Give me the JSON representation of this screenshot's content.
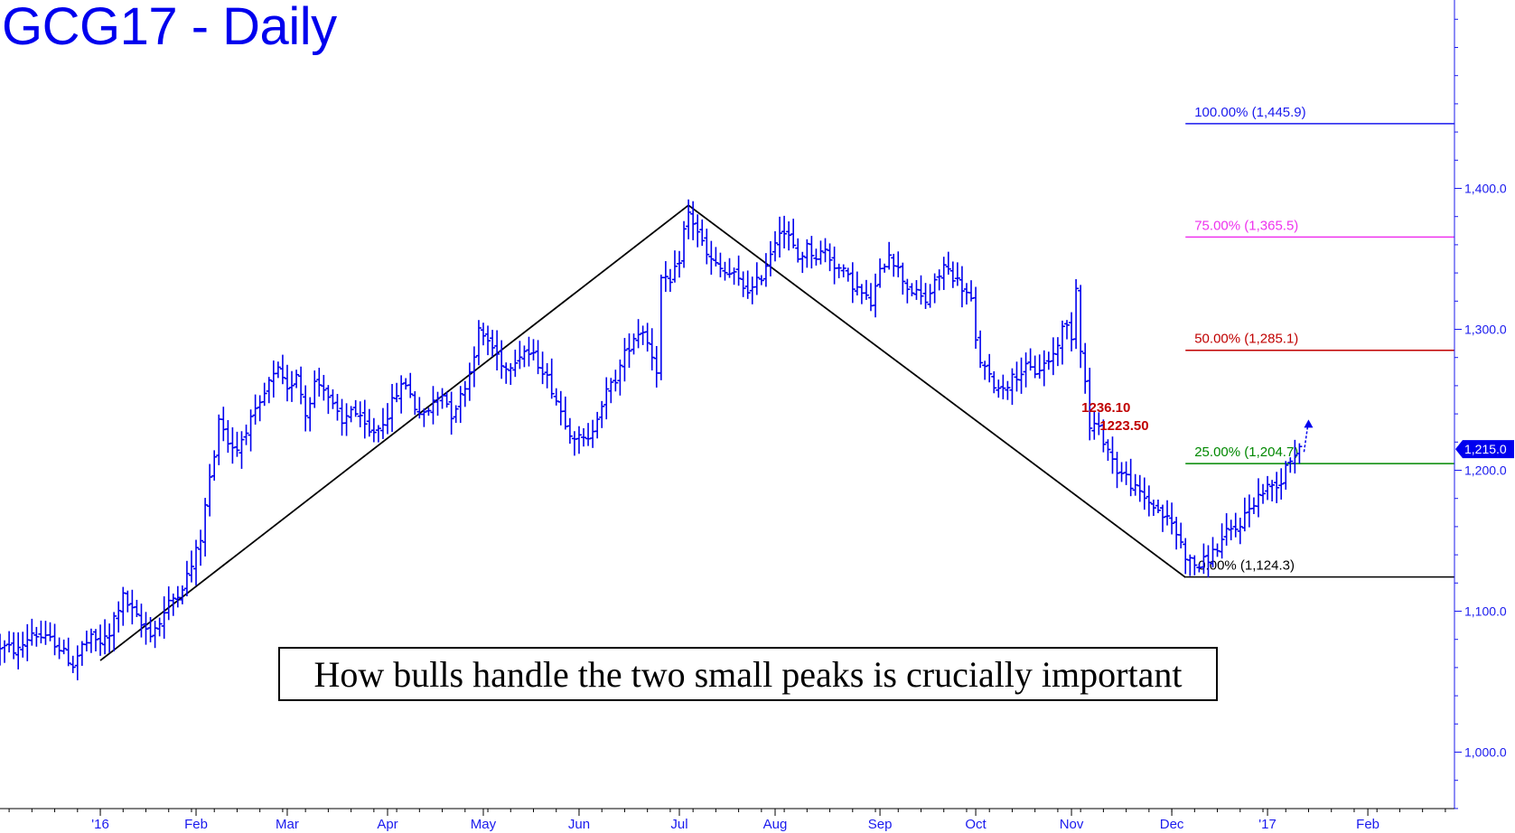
{
  "chart_data": {
    "type": "ohlc",
    "title": "GCG17 - Daily",
    "annotation": "How bulls handle the two small peaks is crucially important",
    "ylim": [
      940,
      1530
    ],
    "y_ticks": [
      {
        "value": 1000,
        "label": "1,000.0"
      },
      {
        "value": 1100,
        "label": "1,100.0"
      },
      {
        "value": 1200,
        "label": "1,200.0"
      },
      {
        "value": 1300,
        "label": "1,300.0"
      },
      {
        "value": 1400,
        "label": "1,400.0"
      }
    ],
    "x_months": [
      {
        "label": "'16",
        "day": 0
      },
      {
        "label": "Feb",
        "day": 21
      },
      {
        "label": "Mar",
        "day": 41
      },
      {
        "label": "Apr",
        "day": 63
      },
      {
        "label": "May",
        "day": 84
      },
      {
        "label": "Jun",
        "day": 105
      },
      {
        "label": "Jul",
        "day": 127
      },
      {
        "label": "Aug",
        "day": 148
      },
      {
        "label": "Sep",
        "day": 171
      },
      {
        "label": "Oct",
        "day": 192
      },
      {
        "label": "Nov",
        "day": 213
      },
      {
        "label": "Dec",
        "day": 235
      },
      {
        "label": "'17",
        "day": 256
      },
      {
        "label": "Feb",
        "day": 278
      }
    ],
    "xlim": [
      -22,
      297
    ],
    "last_price": {
      "value": 1215.0,
      "label": "1,215.0",
      "color": "#0000ee"
    },
    "fib_levels": [
      {
        "value": 1445.9,
        "label": "100.00% (1,445.9)",
        "color": "#1a1aee"
      },
      {
        "value": 1365.5,
        "label": "75.00% (1,365.5)",
        "color": "#ee33ee"
      },
      {
        "value": 1285.1,
        "label": "50.00% (1,285.1)",
        "color": "#c00000"
      },
      {
        "value": 1204.7,
        "label": "25.00% (1,204.7)",
        "color": "#008800"
      },
      {
        "value": 1124.3,
        "label": "0.00% (1,124.3)",
        "color": "#000000"
      }
    ],
    "fib_start_day": 238,
    "peak_labels": [
      {
        "text": "1236.10",
        "day": 215,
        "value": 1236.1
      },
      {
        "text": "1223.50",
        "day": 219,
        "value": 1223.5
      }
    ],
    "trend_lines": [
      [
        {
          "day": 0,
          "value": 1065
        },
        {
          "day": 129,
          "value": 1388
        }
      ],
      [
        {
          "day": 129,
          "value": 1388
        },
        {
          "day": 238,
          "value": 1124
        }
      ]
    ],
    "target_arrow": {
      "day": 264,
      "from": 1213,
      "to": 1236
    },
    "waypoints": [
      [
        -22,
        1075
      ],
      [
        -18,
        1072
      ],
      [
        -15,
        1085
      ],
      [
        -12,
        1080
      ],
      [
        -10,
        1078
      ],
      [
        -8,
        1070
      ],
      [
        -6,
        1062
      ],
      [
        -4,
        1075
      ],
      [
        -2,
        1080
      ],
      [
        0,
        1078
      ],
      [
        2,
        1082
      ],
      [
        3,
        1095
      ],
      [
        5,
        1110
      ],
      [
        7,
        1100
      ],
      [
        9,
        1090
      ],
      [
        11,
        1085
      ],
      [
        13,
        1092
      ],
      [
        15,
        1105
      ],
      [
        18,
        1118
      ],
      [
        20,
        1132
      ],
      [
        22,
        1152
      ],
      [
        24,
        1195
      ],
      [
        25,
        1208
      ],
      [
        26,
        1240
      ],
      [
        28,
        1220
      ],
      [
        30,
        1215
      ],
      [
        32,
        1230
      ],
      [
        35,
        1245
      ],
      [
        37,
        1262
      ],
      [
        39,
        1270
      ],
      [
        41,
        1255
      ],
      [
        43,
        1270
      ],
      [
        45,
        1240
      ],
      [
        47,
        1262
      ],
      [
        49,
        1260
      ],
      [
        51,
        1245
      ],
      [
        53,
        1232
      ],
      [
        55,
        1245
      ],
      [
        57,
        1235
      ],
      [
        59,
        1226
      ],
      [
        61,
        1230
      ],
      [
        63,
        1240
      ],
      [
        65,
        1255
      ],
      [
        67,
        1262
      ],
      [
        69,
        1245
      ],
      [
        71,
        1238
      ],
      [
        73,
        1248
      ],
      [
        75,
        1255
      ],
      [
        77,
        1240
      ],
      [
        79,
        1252
      ],
      [
        81,
        1270
      ],
      [
        83,
        1298
      ],
      [
        85,
        1292
      ],
      [
        87,
        1282
      ],
      [
        89,
        1272
      ],
      [
        91,
        1280
      ],
      [
        93,
        1285
      ],
      [
        95,
        1280
      ],
      [
        97,
        1272
      ],
      [
        99,
        1258
      ],
      [
        101,
        1242
      ],
      [
        103,
        1228
      ],
      [
        105,
        1222
      ],
      [
        107,
        1220
      ],
      [
        109,
        1240
      ],
      [
        111,
        1255
      ],
      [
        113,
        1265
      ],
      [
        115,
        1282
      ],
      [
        117,
        1295
      ],
      [
        119,
        1300
      ],
      [
        121,
        1282
      ],
      [
        122,
        1272
      ],
      [
        123,
        1335
      ],
      [
        125,
        1332
      ],
      [
        127,
        1350
      ],
      [
        128,
        1370
      ],
      [
        129,
        1382
      ],
      [
        131,
        1370
      ],
      [
        133,
        1352
      ],
      [
        135,
        1345
      ],
      [
        137,
        1340
      ],
      [
        139,
        1338
      ],
      [
        141,
        1330
      ],
      [
        143,
        1328
      ],
      [
        145,
        1338
      ],
      [
        147,
        1355
      ],
      [
        149,
        1372
      ],
      [
        151,
        1365
      ],
      [
        153,
        1350
      ],
      [
        155,
        1358
      ],
      [
        157,
        1352
      ],
      [
        159,
        1356
      ],
      [
        161,
        1346
      ],
      [
        163,
        1340
      ],
      [
        165,
        1332
      ],
      [
        167,
        1325
      ],
      [
        169,
        1318
      ],
      [
        171,
        1340
      ],
      [
        173,
        1355
      ],
      [
        175,
        1342
      ],
      [
        177,
        1330
      ],
      [
        179,
        1325
      ],
      [
        181,
        1320
      ],
      [
        183,
        1332
      ],
      [
        185,
        1345
      ],
      [
        187,
        1338
      ],
      [
        189,
        1330
      ],
      [
        191,
        1320
      ],
      [
        192,
        1290
      ],
      [
        193,
        1278
      ],
      [
        195,
        1265
      ],
      [
        197,
        1258
      ],
      [
        199,
        1262
      ],
      [
        201,
        1268
      ],
      [
        203,
        1272
      ],
      [
        205,
        1270
      ],
      [
        207,
        1275
      ],
      [
        209,
        1282
      ],
      [
        211,
        1300
      ],
      [
        212,
        1302
      ],
      [
        213,
        1296
      ],
      [
        214,
        1330
      ],
      [
        215,
        1288
      ],
      [
        216,
        1262
      ],
      [
        217,
        1230
      ],
      [
        218,
        1232
      ],
      [
        219,
        1228
      ],
      [
        220,
        1222
      ],
      [
        221,
        1215
      ],
      [
        223,
        1200
      ],
      [
        225,
        1195
      ],
      [
        227,
        1186
      ],
      [
        229,
        1180
      ],
      [
        231,
        1175
      ],
      [
        233,
        1168
      ],
      [
        235,
        1162
      ],
      [
        237,
        1148
      ],
      [
        238,
        1140
      ],
      [
        239,
        1135
      ],
      [
        241,
        1132
      ],
      [
        243,
        1138
      ],
      [
        245,
        1145
      ],
      [
        247,
        1155
      ],
      [
        249,
        1158
      ],
      [
        251,
        1168
      ],
      [
        253,
        1178
      ],
      [
        255,
        1185
      ],
      [
        257,
        1190
      ],
      [
        259,
        1192
      ],
      [
        260,
        1205
      ],
      [
        262,
        1212
      ],
      [
        263,
        1218
      ]
    ]
  }
}
